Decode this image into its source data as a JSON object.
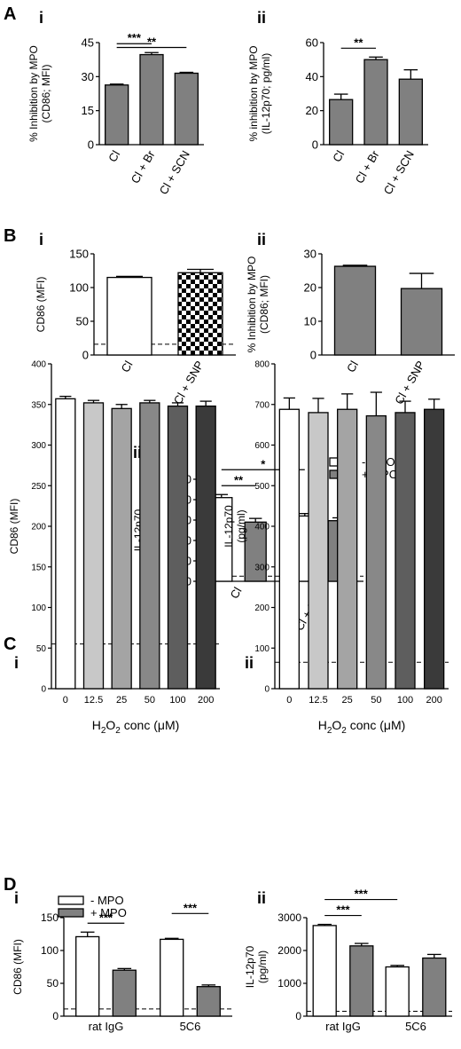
{
  "colors": {
    "dark_gray": "#808080",
    "white": "#ffffff",
    "black": "#000000"
  },
  "section_labels": [
    "A",
    "B",
    "C",
    "D"
  ],
  "chart_data": [
    {
      "id": "A-i",
      "type": "bar",
      "section": "A",
      "panel": "i",
      "ylabel": "% Inhibition by MPO (CD86; MFI)",
      "ylim": [
        0,
        45
      ],
      "yticks": [
        "0",
        "15",
        "30",
        "45"
      ],
      "categories": [
        "Cl",
        "Cl + Br",
        "Cl + SCN"
      ],
      "series": [
        {
          "values": [
            26.3,
            39.7,
            31.5
          ],
          "errors": [
            0.4,
            0.9,
            0.4
          ],
          "color": "#808080"
        }
      ],
      "significance": [
        {
          "from": 0,
          "to": 1,
          "label": "***"
        },
        {
          "from": 0,
          "to": 2,
          "label": "**"
        }
      ]
    },
    {
      "id": "A-ii",
      "type": "bar",
      "section": "A",
      "panel": "ii",
      "ylabel": "% inhibition by MPO (IL-12p70; pg/ml)",
      "ylim": [
        0,
        60
      ],
      "yticks": [
        "0",
        "20",
        "40",
        "60"
      ],
      "categories": [
        "Cl",
        "Cl + Br",
        "Cl + SCN"
      ],
      "series": [
        {
          "values": [
            26.5,
            50.0,
            38.5
          ],
          "errors": [
            3.2,
            1.5,
            5.5
          ],
          "color": "#808080"
        }
      ],
      "significance": [
        {
          "from": 0,
          "to": 1,
          "label": "**"
        }
      ]
    },
    {
      "id": "B-i",
      "type": "bar",
      "section": "B",
      "panel": "i",
      "ylabel": "CD86 (MFI)",
      "ylim": [
        0,
        150
      ],
      "yticks": [
        "0",
        "50",
        "100",
        "150"
      ],
      "categories": [
        "Cl",
        "Cl + SNP"
      ],
      "series": [
        {
          "values": [
            115,
            122
          ],
          "errors": [
            1.5,
            5.0
          ],
          "fills": [
            "#ffffff",
            "checker"
          ]
        }
      ],
      "dashed_baseline": 16
    },
    {
      "id": "B-ii",
      "type": "bar",
      "section": "B",
      "panel": "ii",
      "ylabel": "% Inhibition by MPO (CD86; MFI)",
      "ylim": [
        0,
        30
      ],
      "yticks": [
        "0",
        "10",
        "20",
        "30"
      ],
      "categories": [
        "Cl",
        "Cl + SNP"
      ],
      "series": [
        {
          "values": [
            26.3,
            19.7
          ],
          "errors": [
            0.3,
            4.5
          ],
          "color": "#808080"
        }
      ]
    },
    {
      "id": "B-iii",
      "type": "bar",
      "section": "B",
      "panel": "iii",
      "ylabel": "IL-12p70 (pg/ml)",
      "ylim": [
        0,
        500
      ],
      "yticks": [
        "0",
        "100",
        "200",
        "300",
        "400",
        "500"
      ],
      "categories": [
        "Cl",
        "Cl + SNP"
      ],
      "legend": [
        "- MPO",
        "+ MPO"
      ],
      "series": [
        {
          "name": "- MPO",
          "values": [
            410,
            320
          ],
          "errors": [
            15,
            12
          ],
          "color": "#ffffff"
        },
        {
          "name": "+ MPO",
          "values": [
            290,
            297
          ],
          "errors": [
            18,
            14
          ],
          "color": "#808080"
        }
      ],
      "significance": [
        {
          "from": "Cl:- MPO",
          "to": "Cl:+ MPO",
          "label": "**"
        },
        {
          "from": "Cl:- MPO",
          "to": "Cl + SNP:- MPO",
          "label": "*"
        }
      ],
      "dashed_baseline": 25
    },
    {
      "id": "C-i",
      "type": "bar",
      "section": "C",
      "panel": "i",
      "ylabel": "CD86 (MFI)",
      "xlabel_parts": [
        "H",
        "2",
        "O",
        "2",
        " conc (",
        "μ",
        "M)"
      ],
      "ylim": [
        0,
        400
      ],
      "yticks": [
        "0",
        "50",
        "100",
        "150",
        "200",
        "250",
        "300",
        "350",
        "400"
      ],
      "categories": [
        "0",
        "12.5",
        "25",
        "50",
        "100",
        "200"
      ],
      "series": [
        {
          "values": [
            357,
            352,
            345,
            352,
            348,
            348
          ],
          "errors": [
            3,
            3,
            5,
            3,
            4,
            6
          ],
          "fills": [
            "#ffffff",
            "#c8c8c8",
            "#a4a4a4",
            "#888888",
            "#5e5e5e",
            "#3a3a3a"
          ]
        }
      ],
      "dashed_baseline": 55
    },
    {
      "id": "C-ii",
      "type": "bar",
      "section": "C",
      "panel": "ii",
      "ylabel": "IL-12p70 (pg/ml)",
      "xlabel_parts": [
        "H",
        "2",
        "O",
        "2",
        " conc (",
        "μ",
        "M)"
      ],
      "ylim": [
        0,
        800
      ],
      "yticks": [
        "0",
        "100",
        "200",
        "300",
        "400",
        "500",
        "600",
        "700",
        "800"
      ],
      "categories": [
        "0",
        "12.5",
        "25",
        "50",
        "100",
        "200"
      ],
      "series": [
        {
          "values": [
            688,
            680,
            688,
            672,
            680,
            688
          ],
          "errors": [
            28,
            35,
            38,
            58,
            28,
            25
          ],
          "fills": [
            "#ffffff",
            "#c8c8c8",
            "#a4a4a4",
            "#888888",
            "#5e5e5e",
            "#3a3a3a"
          ]
        }
      ],
      "dashed_baseline": 65
    },
    {
      "id": "D-i",
      "type": "bar",
      "section": "D",
      "panel": "i",
      "ylabel": "CD86 (MFI)",
      "ylim": [
        0,
        150
      ],
      "yticks": [
        "0",
        "50",
        "100",
        "150"
      ],
      "categories": [
        "rat IgG",
        "5C6"
      ],
      "legend": [
        "- MPO",
        "+ MPO"
      ],
      "series": [
        {
          "name": "- MPO",
          "values": [
            121,
            117
          ],
          "errors": [
            7,
            1.5
          ],
          "color": "#ffffff"
        },
        {
          "name": "+ MPO",
          "values": [
            70,
            45
          ],
          "errors": [
            2.5,
            2.5
          ],
          "color": "#808080"
        }
      ],
      "significance": [
        {
          "from": "rat IgG:- MPO",
          "to": "rat IgG:+ MPO",
          "label": "***"
        },
        {
          "from": "5C6:- MPO",
          "to": "5C6:+ MPO",
          "label": "***"
        }
      ],
      "dashed_baseline": 11
    },
    {
      "id": "D-ii",
      "type": "bar",
      "section": "D",
      "panel": "ii",
      "ylabel": "IL-12p70 (pg/ml)",
      "ylim": [
        0,
        3000
      ],
      "yticks": [
        "0",
        "1000",
        "2000",
        "3000"
      ],
      "categories": [
        "rat IgG",
        "5C6"
      ],
      "series": [
        {
          "name": "- MPO",
          "values": [
            2760,
            1500
          ],
          "errors": [
            35,
            45
          ],
          "color": "#ffffff"
        },
        {
          "name": "+ MPO",
          "values": [
            2140,
            1770
          ],
          "errors": [
            75,
            110
          ],
          "color": "#808080"
        }
      ],
      "significance": [
        {
          "from": "rat IgG:- MPO",
          "to": "rat IgG:+ MPO",
          "label": "***"
        },
        {
          "from": "rat IgG:- MPO",
          "to": "5C6:- MPO",
          "label": "***"
        }
      ],
      "dashed_baseline": 150
    }
  ]
}
